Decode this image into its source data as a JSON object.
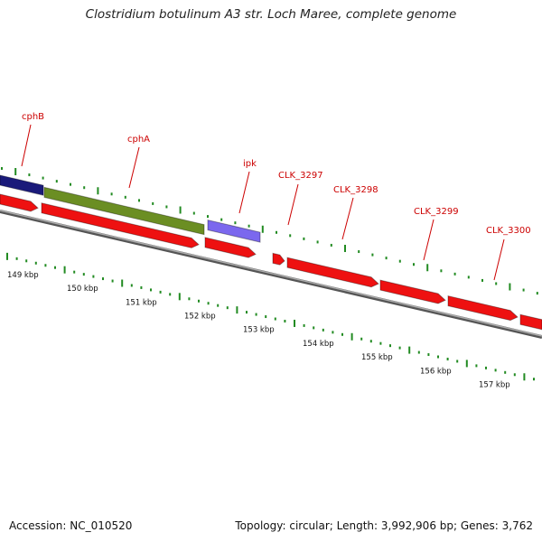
{
  "title": "Clostridium botulinum A3 str. Loch Maree, complete genome",
  "accession": "Accession: NC_010520",
  "summary": "Topology: circular; Length: 3,992,906 bp; Genes: 3,762",
  "colors": {
    "forward_cds": "#ee1111",
    "cph_b": "#1a1a7a",
    "cph_a": "#6b8e23",
    "ipk": "#7b68ee",
    "backbone": "#888888",
    "ticks": "#228b22",
    "gene_label": "#cc0000"
  },
  "genes": [
    {
      "label": "cphB",
      "color": "#1a1a7a"
    },
    {
      "label": "cphA",
      "color": "#6b8e23"
    },
    {
      "label": "ipk",
      "color": "#7b68ee"
    },
    {
      "label": "CLK_3297",
      "color": "#ee1111"
    },
    {
      "label": "CLK_3298",
      "color": "#ee1111"
    },
    {
      "label": "CLK_3299",
      "color": "#ee1111"
    },
    {
      "label": "CLK_3300",
      "color": "#ee1111"
    }
  ],
  "scale": {
    "labels": [
      "149 kbp",
      "150 kbp",
      "151 kbp",
      "152 kbp",
      "153 kbp",
      "154 kbp",
      "155 kbp",
      "156 kbp",
      "157 kbp"
    ]
  }
}
